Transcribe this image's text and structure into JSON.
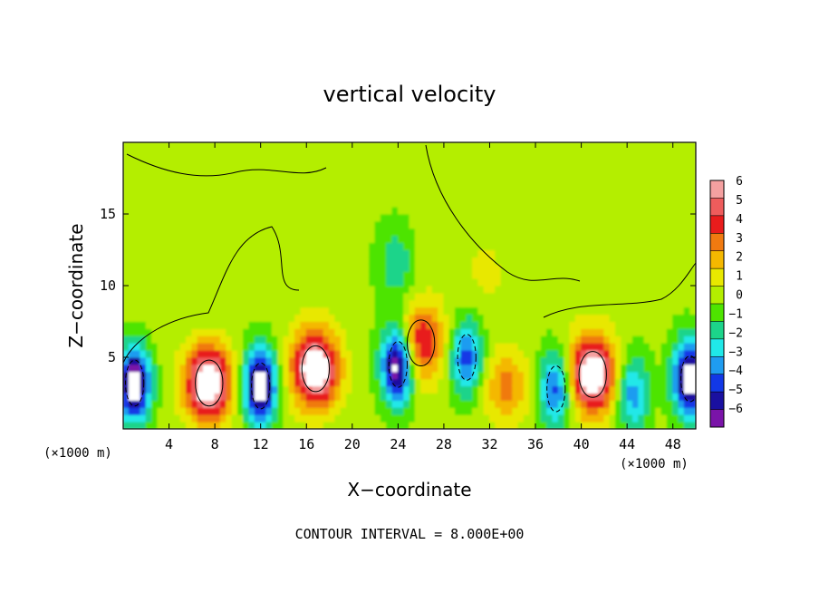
{
  "chart_data": {
    "type": "heatmap",
    "title": "vertical velocity",
    "xlabel": "X−coordinate",
    "ylabel": "Z−coordinate",
    "x_unit_left": "(×1000 m)",
    "x_unit_right": "(×1000 m)",
    "footer": "CONTOUR INTERVAL = 8.000E+00",
    "xlim": [
      0,
      50
    ],
    "ylim": [
      0,
      20
    ],
    "x_ticks": [
      "4",
      "8",
      "12",
      "16",
      "20",
      "24",
      "28",
      "32",
      "36",
      "40",
      "44",
      "48"
    ],
    "y_ticks": [
      "5",
      "10",
      "15"
    ],
    "colorbar": {
      "levels": [
        "6",
        "5",
        "4",
        "3",
        "2",
        "1",
        "0",
        "−1",
        "−2",
        "−3",
        "−4",
        "−5",
        "−6"
      ],
      "colors": [
        "#f4a0a0",
        "#ee5c5c",
        "#e81c1c",
        "#f07a10",
        "#f4b800",
        "#e8e800",
        "#b4ee00",
        "#4ee400",
        "#1cd48a",
        "#20e8e8",
        "#1f9cf0",
        "#1238e6",
        "#1a10a0",
        "#7a14a8"
      ]
    },
    "field_features": [
      {
        "x": 1.0,
        "z": 3.2,
        "w": -6
      },
      {
        "x": 7.5,
        "z": 3.2,
        "w": 6
      },
      {
        "x": 12.0,
        "z": 3.0,
        "w": -6
      },
      {
        "x": 16.8,
        "z": 4.2,
        "w": 6
      },
      {
        "x": 24.0,
        "z": 4.5,
        "w": -6
      },
      {
        "x": 26.0,
        "z": 6.0,
        "w": 5
      },
      {
        "x": 30.0,
        "z": 5.0,
        "w": -5
      },
      {
        "x": 33.5,
        "z": 3.0,
        "w": 3
      },
      {
        "x": 37.8,
        "z": 2.8,
        "w": -5
      },
      {
        "x": 41.0,
        "z": 3.8,
        "w": 6
      },
      {
        "x": 44.5,
        "z": 2.5,
        "w": -4
      },
      {
        "x": 49.5,
        "z": 3.5,
        "w": -6
      },
      {
        "x": 24.0,
        "z": 11.5,
        "w": -2
      },
      {
        "x": 32.0,
        "z": 11.0,
        "w": 1
      }
    ]
  }
}
